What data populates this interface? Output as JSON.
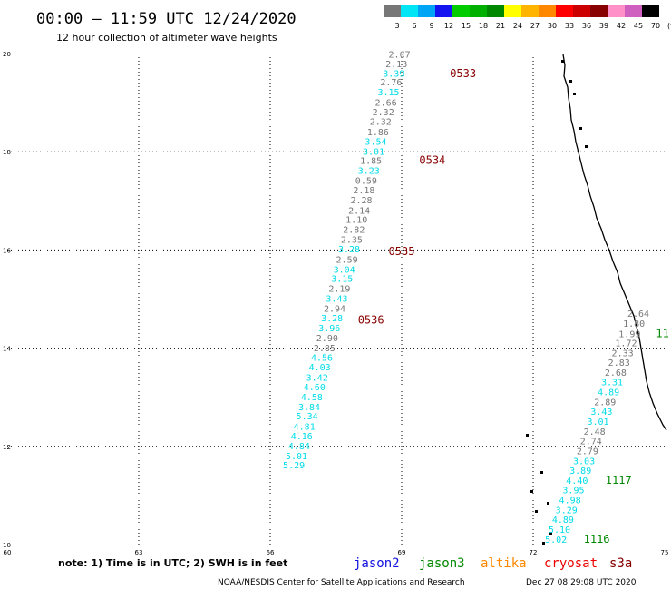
{
  "header": {
    "title": "00:00 – 11:59 UTC 12/24/2020",
    "subtitle": "12 hour collection of altimeter wave heights"
  },
  "color_scale": {
    "colors": [
      "#777777",
      "#00e5f5",
      "#00a6f5",
      "#1414f0",
      "#00cc00",
      "#00b000",
      "#008800",
      "#ffff00",
      "#ffb400",
      "#ff8800",
      "#ff0000",
      "#cc0000",
      "#880000",
      "#ff90c8",
      "#d060c0",
      "#000000"
    ],
    "labels": [
      "3",
      "6",
      "9",
      "12",
      "15",
      "18",
      "21",
      "24",
      "27",
      "30",
      "33",
      "36",
      "39",
      "42",
      "45",
      "70",
      "(ft)"
    ]
  },
  "map": {
    "x_ticks": [
      "60",
      "63",
      "66",
      "69",
      "72",
      "75"
    ],
    "y_ticks": [
      "20",
      "18",
      "16",
      "14",
      "12",
      "10"
    ],
    "xlim": [
      60,
      75
    ],
    "ylim": [
      10,
      20
    ]
  },
  "tracks": [
    {
      "name": "cryosat",
      "color": "#777777",
      "alt_color": "#00dce8",
      "points": [
        {
          "lat": 19.92,
          "lon": 68.95,
          "label": "2.07",
          "c": 0
        },
        {
          "lat": 19.72,
          "lon": 68.88,
          "label": "2.13",
          "c": 0
        },
        {
          "lat": 19.53,
          "lon": 68.82,
          "label": "3.39",
          "c": 1
        },
        {
          "lat": 19.35,
          "lon": 68.76,
          "label": "2.76",
          "c": 0
        },
        {
          "lat": 19.15,
          "lon": 68.7,
          "label": "3.15",
          "c": 1
        },
        {
          "lat": 18.94,
          "lon": 68.64,
          "label": "2.66",
          "c": 0
        },
        {
          "lat": 18.74,
          "lon": 68.58,
          "label": "2.32",
          "c": 0
        },
        {
          "lat": 18.55,
          "lon": 68.52,
          "label": "2.32",
          "c": 0
        },
        {
          "lat": 18.34,
          "lon": 68.46,
          "label": "1.86",
          "c": 0
        },
        {
          "lat": 18.14,
          "lon": 68.41,
          "label": "3.54",
          "c": 1
        },
        {
          "lat": 17.94,
          "lon": 68.36,
          "label": "3.01",
          "c": 1
        },
        {
          "lat": 17.75,
          "lon": 68.3,
          "label": "1.85",
          "c": 0
        },
        {
          "lat": 17.55,
          "lon": 68.25,
          "label": "3.23",
          "c": 1
        },
        {
          "lat": 17.35,
          "lon": 68.19,
          "label": "0.59",
          "c": 0
        },
        {
          "lat": 17.15,
          "lon": 68.14,
          "label": "2.18",
          "c": 0
        },
        {
          "lat": 16.95,
          "lon": 68.08,
          "label": "2.28",
          "c": 0
        },
        {
          "lat": 16.74,
          "lon": 68.03,
          "label": "2.14",
          "c": 0
        },
        {
          "lat": 16.55,
          "lon": 67.97,
          "label": "1.10",
          "c": 0
        },
        {
          "lat": 16.35,
          "lon": 67.91,
          "label": "2.82",
          "c": 0
        },
        {
          "lat": 16.15,
          "lon": 67.86,
          "label": "2.35",
          "c": 0
        },
        {
          "lat": 15.95,
          "lon": 67.8,
          "label": "3.28",
          "c": 1
        },
        {
          "lat": 15.74,
          "lon": 67.75,
          "label": "2.59",
          "c": 0
        },
        {
          "lat": 15.54,
          "lon": 67.69,
          "label": "3.04",
          "c": 1
        },
        {
          "lat": 15.35,
          "lon": 67.64,
          "label": "3.15",
          "c": 1
        },
        {
          "lat": 15.15,
          "lon": 67.58,
          "label": "2.19",
          "c": 0
        },
        {
          "lat": 14.94,
          "lon": 67.52,
          "label": "3.43",
          "c": 1
        },
        {
          "lat": 14.74,
          "lon": 67.47,
          "label": "2.94",
          "c": 0
        },
        {
          "lat": 14.55,
          "lon": 67.41,
          "label": "3.28",
          "c": 1
        },
        {
          "lat": 14.34,
          "lon": 67.35,
          "label": "3.96",
          "c": 1
        },
        {
          "lat": 14.14,
          "lon": 67.3,
          "label": "2.90",
          "c": 0
        },
        {
          "lat": 13.94,
          "lon": 67.24,
          "label": "2.85",
          "c": 0
        },
        {
          "lat": 13.74,
          "lon": 67.18,
          "label": "4.56",
          "c": 1
        },
        {
          "lat": 13.55,
          "lon": 67.13,
          "label": "4.03",
          "c": 1
        },
        {
          "lat": 13.34,
          "lon": 67.07,
          "label": "3.42",
          "c": 1
        },
        {
          "lat": 13.14,
          "lon": 67.01,
          "label": "4.60",
          "c": 1
        },
        {
          "lat": 12.94,
          "lon": 66.95,
          "label": "4.58",
          "c": 1
        },
        {
          "lat": 12.74,
          "lon": 66.89,
          "label": "3.84",
          "c": 1
        },
        {
          "lat": 12.55,
          "lon": 66.84,
          "label": "5.34",
          "c": 1
        },
        {
          "lat": 12.34,
          "lon": 66.78,
          "label": "4.81",
          "c": 1
        },
        {
          "lat": 12.14,
          "lon": 66.72,
          "label": "4.16",
          "c": 1
        },
        {
          "lat": 11.94,
          "lon": 66.66,
          "label": "4.84",
          "c": 1
        },
        {
          "lat": 11.74,
          "lon": 66.6,
          "label": "5.01",
          "c": 1
        },
        {
          "lat": 11.55,
          "lon": 66.54,
          "label": "5.29",
          "c": 1
        }
      ],
      "times": [
        {
          "lat": 19.52,
          "lon": 70.4,
          "label": "0533"
        },
        {
          "lat": 17.75,
          "lon": 69.7,
          "label": "0534"
        },
        {
          "lat": 15.9,
          "lon": 69.0,
          "label": "0535"
        },
        {
          "lat": 14.5,
          "lon": 68.3,
          "label": "0536"
        }
      ]
    },
    {
      "name": "jason3",
      "color": "#777777",
      "alt_color": "#00dce8",
      "points": [
        {
          "lat": 14.64,
          "lon": 74.4,
          "label": "2.64",
          "c": 0
        },
        {
          "lat": 14.44,
          "lon": 74.3,
          "label": "1.80",
          "c": 0
        },
        {
          "lat": 14.22,
          "lon": 74.2,
          "label": "1.99",
          "c": 0
        },
        {
          "lat": 14.04,
          "lon": 74.12,
          "label": "1.72",
          "c": 0
        },
        {
          "lat": 13.84,
          "lon": 74.04,
          "label": "2.33",
          "c": 0
        },
        {
          "lat": 13.64,
          "lon": 73.96,
          "label": "2.83",
          "c": 0
        },
        {
          "lat": 13.44,
          "lon": 73.88,
          "label": "2.68",
          "c": 0
        },
        {
          "lat": 13.24,
          "lon": 73.8,
          "label": "3.31",
          "c": 1
        },
        {
          "lat": 13.04,
          "lon": 73.72,
          "label": "4.89",
          "c": 1
        },
        {
          "lat": 12.84,
          "lon": 73.64,
          "label": "2.89",
          "c": 0
        },
        {
          "lat": 12.64,
          "lon": 73.56,
          "label": "3.43",
          "c": 1
        },
        {
          "lat": 12.44,
          "lon": 73.48,
          "label": "3.01",
          "c": 1
        },
        {
          "lat": 12.24,
          "lon": 73.4,
          "label": "2.48",
          "c": 0
        },
        {
          "lat": 12.04,
          "lon": 73.32,
          "label": "2.74",
          "c": 0
        },
        {
          "lat": 11.84,
          "lon": 73.24,
          "label": "2.79",
          "c": 0
        },
        {
          "lat": 11.64,
          "lon": 73.16,
          "label": "3.03",
          "c": 1
        },
        {
          "lat": 11.44,
          "lon": 73.08,
          "label": "3.89",
          "c": 1
        },
        {
          "lat": 11.24,
          "lon": 73.0,
          "label": "4.40",
          "c": 1
        },
        {
          "lat": 11.04,
          "lon": 72.92,
          "label": "3.95",
          "c": 1
        },
        {
          "lat": 10.84,
          "lon": 72.84,
          "label": "4.98",
          "c": 1
        },
        {
          "lat": 10.64,
          "lon": 72.76,
          "label": "3.29",
          "c": 1
        },
        {
          "lat": 10.44,
          "lon": 72.68,
          "label": "4.89",
          "c": 1
        },
        {
          "lat": 10.24,
          "lon": 72.6,
          "label": "5.10",
          "c": 1
        },
        {
          "lat": 10.04,
          "lon": 72.52,
          "label": "5.02",
          "c": 1
        }
      ],
      "times": [
        {
          "lat": 14.22,
          "lon": 74.95,
          "label": "11"
        },
        {
          "lat": 11.24,
          "lon": 73.95,
          "label": "1117"
        },
        {
          "lat": 10.04,
          "lon": 73.45,
          "label": "1116"
        }
      ]
    }
  ],
  "footer": {
    "note": "note: 1) Time is in UTC; 2) SWH is in feet",
    "missions": [
      {
        "name": "jason2",
        "color": "#1010e0"
      },
      {
        "name": "jason3",
        "color": "#008800"
      },
      {
        "name": "altika",
        "color": "#ff8800"
      },
      {
        "name": "cryosat",
        "color": "#ee0000"
      },
      {
        "name": "s3a",
        "color": "#880000"
      }
    ],
    "credit": "NOAA/NESDIS Center for Satellite Applications and Research",
    "timestamp": "Dec 27 08:29:08 UTC 2020"
  }
}
